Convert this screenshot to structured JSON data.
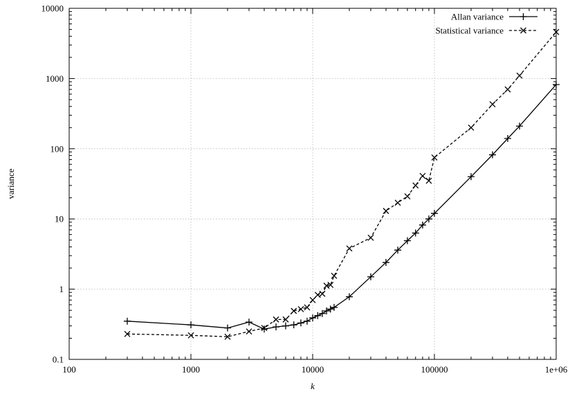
{
  "chart_data": {
    "type": "line",
    "title": "",
    "xlabel": "k",
    "ylabel": "variance",
    "x_scale": "log",
    "y_scale": "log",
    "xlim": [
      100,
      1000000
    ],
    "ylim": [
      0.1,
      10000
    ],
    "grid": true,
    "legend_position": "top-right",
    "x_ticks": [
      100,
      1000,
      10000,
      100000,
      1000000
    ],
    "x_tick_labels": [
      "100",
      "1000",
      "10000",
      "100000",
      "1e+06"
    ],
    "y_ticks": [
      0.1,
      1,
      10,
      100,
      1000,
      10000
    ],
    "y_tick_labels": [
      "0.1",
      "1",
      "10",
      "100",
      "1000",
      "10000"
    ],
    "series": [
      {
        "name": "Allan variance",
        "marker": "plus",
        "line_style": "solid",
        "color": "#000000",
        "x": [
          300,
          1000,
          2000,
          3000,
          4000,
          5000,
          6000,
          7000,
          8000,
          9000,
          10000,
          11000,
          12000,
          13000,
          14000,
          15000,
          20000,
          30000,
          40000,
          50000,
          60000,
          70000,
          80000,
          90000,
          100000,
          200000,
          300000,
          400000,
          500000,
          1000000
        ],
        "y": [
          0.35,
          0.31,
          0.28,
          0.34,
          0.27,
          0.29,
          0.3,
          0.31,
          0.33,
          0.35,
          0.39,
          0.42,
          0.45,
          0.49,
          0.52,
          0.55,
          0.78,
          1.5,
          2.4,
          3.6,
          4.9,
          6.3,
          8.2,
          10.0,
          12.0,
          40,
          82,
          140,
          210,
          820
        ]
      },
      {
        "name": "Statistical variance",
        "marker": "cross",
        "line_style": "dashed",
        "color": "#000000",
        "x": [
          300,
          1000,
          2000,
          3000,
          4000,
          5000,
          6000,
          7000,
          8000,
          9000,
          10000,
          11000,
          12000,
          13000,
          14000,
          15000,
          20000,
          30000,
          40000,
          50000,
          60000,
          70000,
          80000,
          90000,
          100000,
          200000,
          300000,
          400000,
          500000,
          1000000
        ],
        "y": [
          0.23,
          0.22,
          0.21,
          0.25,
          0.28,
          0.37,
          0.37,
          0.49,
          0.52,
          0.55,
          0.7,
          0.83,
          0.86,
          1.12,
          1.15,
          1.55,
          3.8,
          5.4,
          13,
          17,
          21,
          30,
          41,
          35,
          75,
          200,
          430,
          700,
          1100,
          4600
        ]
      }
    ]
  }
}
